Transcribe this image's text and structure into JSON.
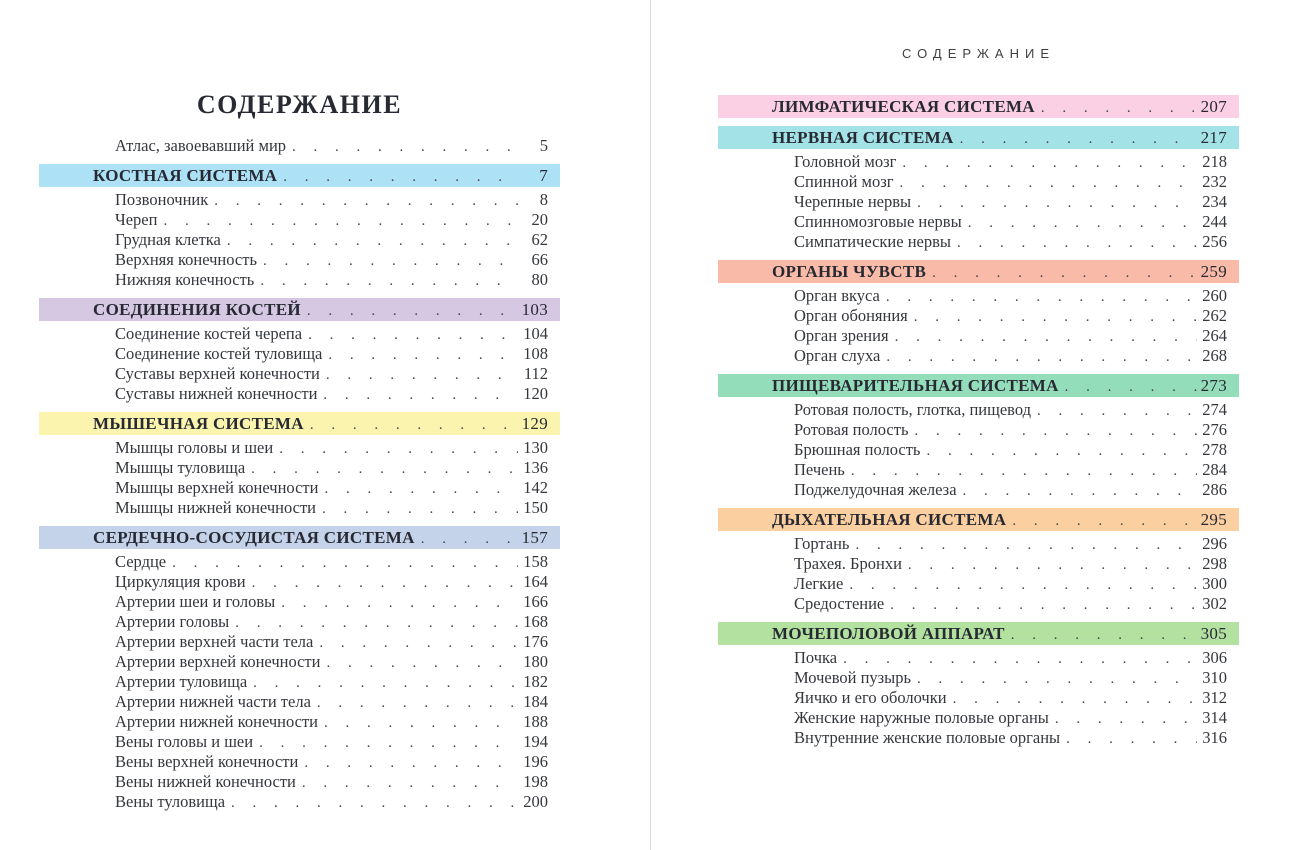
{
  "left_page": {
    "title": "СОДЕРЖАНИЕ",
    "intro_entry": {
      "label": "Атлас, завоевавший мир",
      "page": "5"
    },
    "sections": [
      {
        "heading": "КОСТНАЯ СИСТЕМА",
        "page": "7",
        "color": "#ade1f6",
        "items": [
          {
            "label": "Позвоночник",
            "page": "8"
          },
          {
            "label": "Череп",
            "page": "20"
          },
          {
            "label": "Грудная клетка",
            "page": "62"
          },
          {
            "label": "Верхняя конечность",
            "page": "66"
          },
          {
            "label": "Нижняя конечность",
            "page": "80"
          }
        ]
      },
      {
        "heading": "СОЕДИНЕНИЯ КОСТЕЙ",
        "page": "103",
        "color": "#d6c8e2",
        "items": [
          {
            "label": "Соединение костей черепа",
            "page": "104"
          },
          {
            "label": "Соединение костей туловища",
            "page": "108"
          },
          {
            "label": "Суставы верхней конечности",
            "page": "112"
          },
          {
            "label": "Суставы нижней конечности",
            "page": "120"
          }
        ]
      },
      {
        "heading": "МЫШЕЧНАЯ СИСТЕМА",
        "page": "129",
        "color": "#fbf4ae",
        "items": [
          {
            "label": "Мышцы головы и шеи",
            "page": "130"
          },
          {
            "label": "Мышцы туловища",
            "page": "136"
          },
          {
            "label": "Мышцы верхней конечности",
            "page": "142"
          },
          {
            "label": "Мышцы нижней конечности",
            "page": "150"
          }
        ]
      },
      {
        "heading": "СЕРДЕЧНО-СОСУДИСТАЯ СИСТЕМА",
        "page": "157",
        "color": "#c5d3ea",
        "items": [
          {
            "label": "Сердце",
            "page": "158"
          },
          {
            "label": "Циркуляция крови",
            "page": "164"
          },
          {
            "label": "Артерии шеи и головы",
            "page": "166"
          },
          {
            "label": "Артерии головы",
            "page": "168"
          },
          {
            "label": "Артерии верхней части тела",
            "page": "176"
          },
          {
            "label": "Артерии верхней конечности",
            "page": "180"
          },
          {
            "label": "Артерии туловища",
            "page": "182"
          },
          {
            "label": "Артерии нижней части тела",
            "page": "184"
          },
          {
            "label": "Артерии нижней конечности",
            "page": "188"
          },
          {
            "label": "Вены головы и шеи",
            "page": "194"
          },
          {
            "label": "Вены верхней конечности",
            "page": "196"
          },
          {
            "label": "Вены нижней конечности",
            "page": "198"
          },
          {
            "label": "Вены туловища",
            "page": "200"
          }
        ]
      }
    ]
  },
  "right_page": {
    "running_head": "СОДЕРЖАНИЕ",
    "sections": [
      {
        "heading": "ЛИМФАТИЧЕСКАЯ СИСТЕМА",
        "page": "207",
        "color": "#fbcfe4",
        "items": []
      },
      {
        "heading": "НЕРВНАЯ СИСТЕМА",
        "page": "217",
        "color": "#a3e2e6",
        "items": [
          {
            "label": "Головной мозг",
            "page": "218"
          },
          {
            "label": "Спинной мозг",
            "page": "232"
          },
          {
            "label": "Черепные нервы",
            "page": "234"
          },
          {
            "label": "Спинномозговые нервы",
            "page": "244"
          },
          {
            "label": "Симпатические нервы",
            "page": "256"
          }
        ]
      },
      {
        "heading": "ОРГАНЫ ЧУВСТВ",
        "page": "259",
        "color": "#fabaa8",
        "items": [
          {
            "label": "Орган вкуса",
            "page": "260"
          },
          {
            "label": "Орган обоняния",
            "page": "262"
          },
          {
            "label": "Орган зрения",
            "page": "264"
          },
          {
            "label": "Орган слуха",
            "page": "268"
          }
        ]
      },
      {
        "heading": "ПИЩЕВАРИТЕЛЬНАЯ СИСТЕМА",
        "page": "273",
        "color": "#94ddbb",
        "items": [
          {
            "label": "Ротовая полость, глотка, пищевод",
            "page": "274"
          },
          {
            "label": "Ротовая полость",
            "page": "276"
          },
          {
            "label": "Брюшная полость",
            "page": "278"
          },
          {
            "label": "Печень",
            "page": "284"
          },
          {
            "label": "Поджелудочная железа",
            "page": "286"
          }
        ]
      },
      {
        "heading": "ДЫХАТЕЛЬНАЯ СИСТЕМА",
        "page": "295",
        "color": "#fccfa0",
        "items": [
          {
            "label": "Гортань",
            "page": "296"
          },
          {
            "label": "Трахея. Бронхи",
            "page": "298"
          },
          {
            "label": "Легкие",
            "page": "300"
          },
          {
            "label": "Средостение",
            "page": "302"
          }
        ]
      },
      {
        "heading": "МОЧЕПОЛОВОЙ АППАРАТ",
        "page": "305",
        "color": "#b2e1a0",
        "items": [
          {
            "label": "Почка",
            "page": "306"
          },
          {
            "label": "Мочевой пузырь",
            "page": "310"
          },
          {
            "label": "Яичко и его оболочки",
            "page": "312"
          },
          {
            "label": "Женские наружные половые органы",
            "page": "314"
          },
          {
            "label": "Внутренние женские половые органы",
            "page": "316"
          }
        ]
      }
    ]
  }
}
